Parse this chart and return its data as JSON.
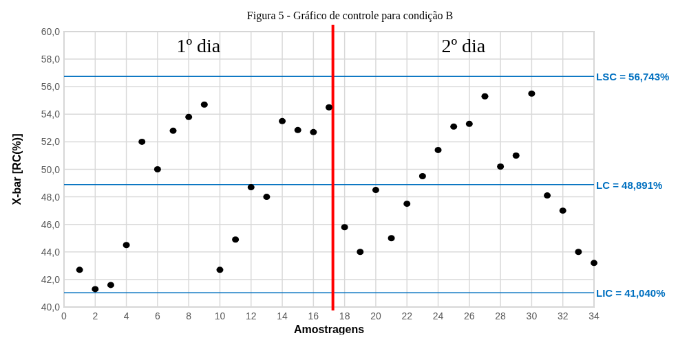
{
  "chart_data": {
    "type": "scatter",
    "title": "Figura 5 - Gráfico de controle para condição B",
    "xlabel": "Amostragens",
    "ylabel": "X-bar [RC(%)]",
    "x": [
      1,
      2,
      3,
      4,
      5,
      6,
      7,
      8,
      9,
      10,
      11,
      12,
      13,
      14,
      15,
      16,
      17,
      18,
      19,
      20,
      21,
      22,
      23,
      24,
      25,
      26,
      27,
      28,
      29,
      30,
      31,
      32,
      33,
      34
    ],
    "series": [
      {
        "color": "#000000",
        "values": [
          42.7,
          41.3,
          41.6,
          44.5,
          52.0,
          50.0,
          52.8,
          53.8,
          54.7,
          42.7,
          44.9,
          48.7,
          48.0,
          53.5,
          52.85,
          52.7,
          54.5,
          45.8,
          44.0,
          48.5,
          45.0,
          47.5,
          49.5,
          51.4,
          53.1,
          53.3,
          55.3,
          50.2,
          51.0,
          55.5,
          48.1,
          47.0,
          44.0,
          43.2
        ]
      }
    ],
    "xlim": [
      0,
      34
    ],
    "xticks": [
      0,
      2,
      4,
      6,
      8,
      10,
      12,
      14,
      16,
      18,
      20,
      22,
      24,
      26,
      28,
      30,
      32,
      34
    ],
    "ylim": [
      40,
      60
    ],
    "yticks": [
      {
        "value": 40,
        "label": "40,0"
      },
      {
        "value": 42,
        "label": "42,0"
      },
      {
        "value": 44,
        "label": "44,0"
      },
      {
        "value": 46,
        "label": "46,0"
      },
      {
        "value": 48,
        "label": "48,0"
      },
      {
        "value": 50,
        "label": "50,0"
      },
      {
        "value": 52,
        "label": "52,0"
      },
      {
        "value": 54,
        "label": "54,0"
      },
      {
        "value": 56,
        "label": "56,0"
      },
      {
        "value": 58,
        "label": "58,0"
      },
      {
        "value": 60,
        "label": "60,0"
      }
    ],
    "ref_lines": [
      {
        "axis": "y",
        "value": 56.743,
        "label": "LSC = 56,743%",
        "color": "#0070c0"
      },
      {
        "axis": "y",
        "value": 48.891,
        "label": "LC = 48,891%",
        "color": "#0070c0"
      },
      {
        "axis": "y",
        "value": 41.04,
        "label": "LIC = 41,040%",
        "color": "#0070c0"
      },
      {
        "axis": "x",
        "value": 17.25,
        "color": "#ff0000"
      }
    ],
    "annotations": [
      "1º dia",
      "2º dia"
    ],
    "grid": true,
    "marker": "circle"
  }
}
